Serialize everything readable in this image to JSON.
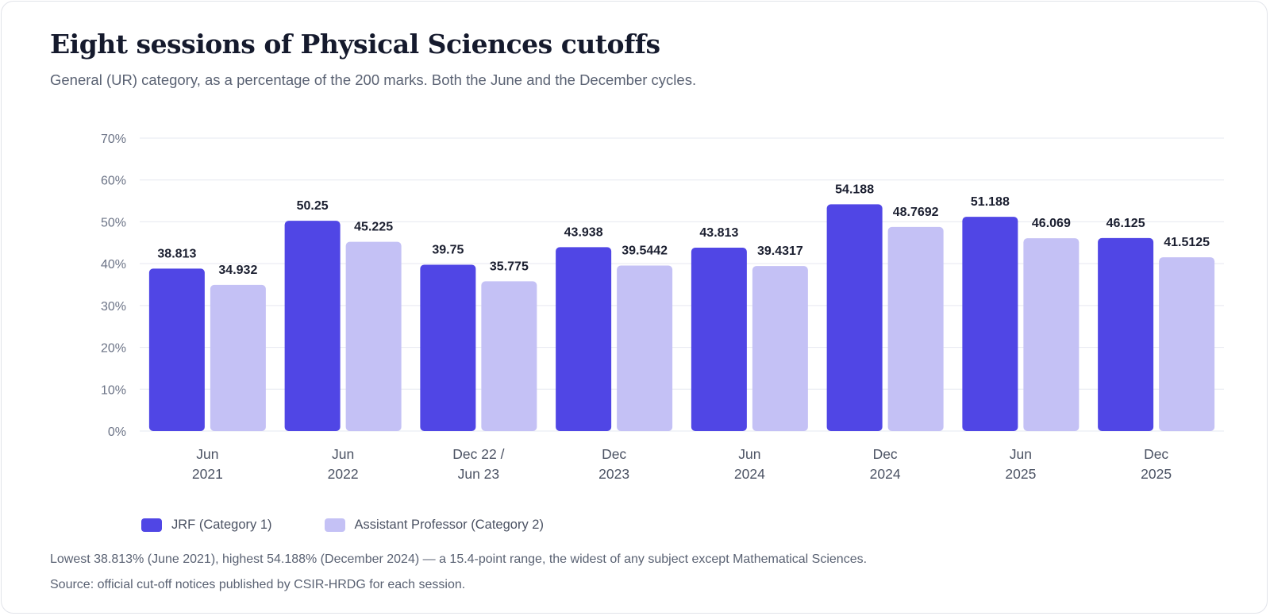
{
  "title": "Eight sessions of Physical Sciences cutoffs",
  "subtitle": "General (UR) category, as a percentage of the 200 marks. Both the June and the December cycles.",
  "note": "Lowest 38.813% (June 2021), highest 54.188% (December 2024) — a 15.4-point range, the widest of any subject except Mathematical Sciences.",
  "source": "Source: official cut-off notices published by CSIR-HRDG for each session.",
  "colors": {
    "jrf": "#5046e5",
    "ap": "#c4c1f5",
    "grid": "#e6e8f0",
    "text": "#1b1f30"
  },
  "chart_data": {
    "type": "bar",
    "title": "Eight sessions of Physical Sciences cutoffs",
    "xlabel": "",
    "ylabel": "",
    "ylim": [
      0,
      70
    ],
    "yticks": [
      0,
      10,
      20,
      30,
      40,
      50,
      60,
      70
    ],
    "ytick_labels": [
      "0%",
      "10%",
      "20%",
      "30%",
      "40%",
      "50%",
      "60%",
      "70%"
    ],
    "grid": true,
    "legend": "bottom-left",
    "categories": [
      [
        "Jun",
        "2021"
      ],
      [
        "Jun",
        "2022"
      ],
      [
        "Dec 22 /",
        "Jun 23"
      ],
      [
        "Dec",
        "2023"
      ],
      [
        "Jun",
        "2024"
      ],
      [
        "Dec",
        "2024"
      ],
      [
        "Jun",
        "2025"
      ],
      [
        "Dec",
        "2025"
      ]
    ],
    "series": [
      {
        "name": "JRF (Category 1)",
        "values": [
          38.813,
          50.25,
          39.75,
          43.938,
          43.813,
          54.188,
          51.188,
          46.125
        ],
        "labels": [
          "38.813",
          "50.25",
          "39.75",
          "43.938",
          "43.813",
          "54.188",
          "51.188",
          "46.125"
        ]
      },
      {
        "name": "Assistant Professor (Category 2)",
        "values": [
          34.932,
          45.225,
          35.775,
          39.5442,
          39.4317,
          48.7692,
          46.069,
          41.5125
        ],
        "labels": [
          "34.932",
          "45.225",
          "35.775",
          "39.5442",
          "39.4317",
          "48.7692",
          "46.069",
          "41.5125"
        ]
      }
    ]
  }
}
